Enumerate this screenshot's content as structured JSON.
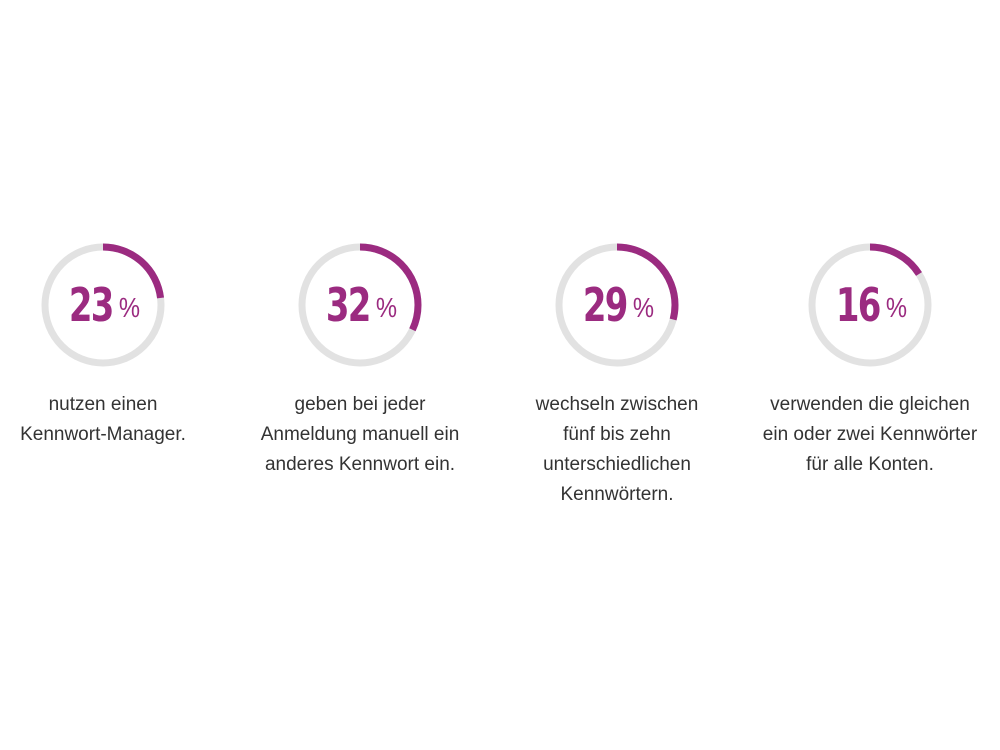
{
  "chart_data": {
    "type": "pie",
    "colors": {
      "accent": "#9b2b80",
      "track": "#e2e2e2",
      "text": "#333333"
    },
    "items": [
      {
        "value": 23,
        "value_text": "23",
        "unit": "%",
        "label": "nutzen einen\nKennwort-Manager."
      },
      {
        "value": 32,
        "value_text": "32",
        "unit": "%",
        "label": "geben bei jeder\nAnmeldung manuell ein\nanderes Kennwort ein."
      },
      {
        "value": 29,
        "value_text": "29",
        "unit": "%",
        "label": "wechseln zwischen\nfünf bis zehn\nunterschiedlichen\nKennwörtern."
      },
      {
        "value": 16,
        "value_text": "16",
        "unit": "%",
        "label": "verwenden die gleichen\nein oder zwei Kennwörter\nfür alle Konten."
      }
    ]
  }
}
